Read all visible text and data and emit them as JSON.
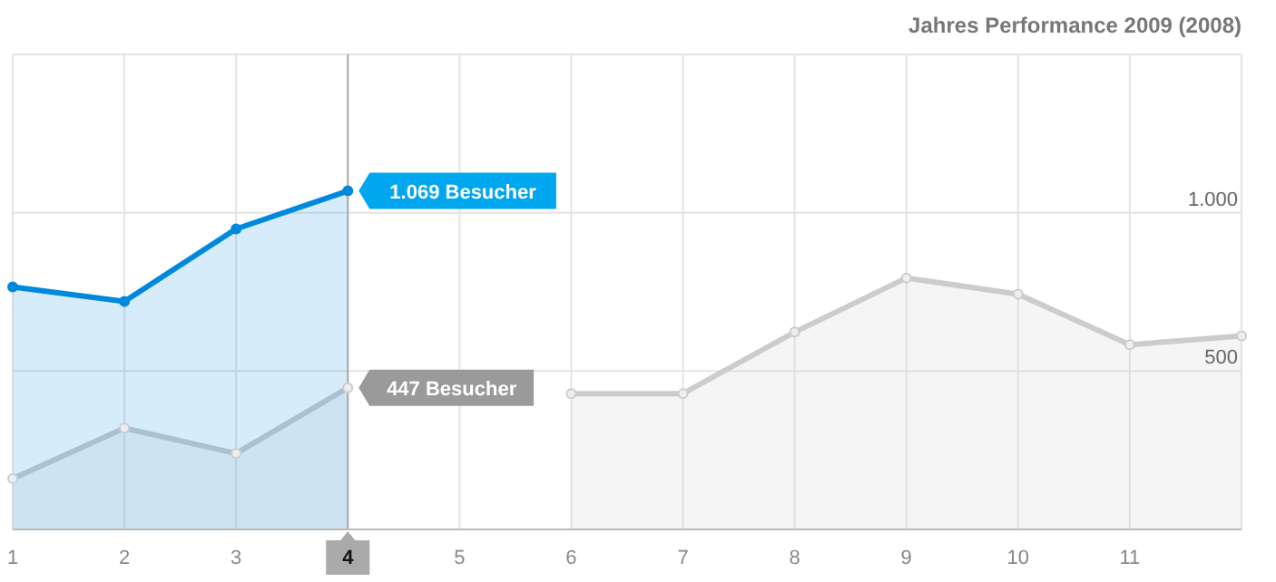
{
  "chart_data": {
    "type": "area",
    "title": "Jahres Performance 2009 (2008)",
    "x": [
      1,
      2,
      3,
      4,
      5,
      6,
      7,
      8,
      9,
      10,
      11,
      12
    ],
    "series": [
      {
        "color": "#0088dd",
        "x": [
          1,
          2,
          3,
          4
        ],
        "values": [
          766,
          720,
          949,
          1069
        ]
      },
      {
        "color": "#cccccc",
        "values": [
          160,
          320,
          240,
          447,
          null,
          429,
          429,
          623,
          794,
          743,
          583,
          611
        ]
      }
    ],
    "xlim": [
      1,
      12
    ],
    "xticks": [
      1,
      2,
      3,
      4,
      5,
      6,
      7,
      8,
      9,
      10,
      11
    ],
    "ylim": [
      0,
      1500
    ],
    "yticks": [
      500,
      {
        "value": 1000,
        "label": "1.000"
      }
    ],
    "grid": true,
    "marker": "circle",
    "ref_lines": [
      {
        "axis": "x",
        "value": 4,
        "color": "#aaaaaa"
      }
    ],
    "annotations": [
      {
        "text": "1.069 Besucher",
        "x": 4,
        "y": 1069
      },
      {
        "text": "447 Besucher",
        "x": 4,
        "y": 447
      }
    ]
  }
}
